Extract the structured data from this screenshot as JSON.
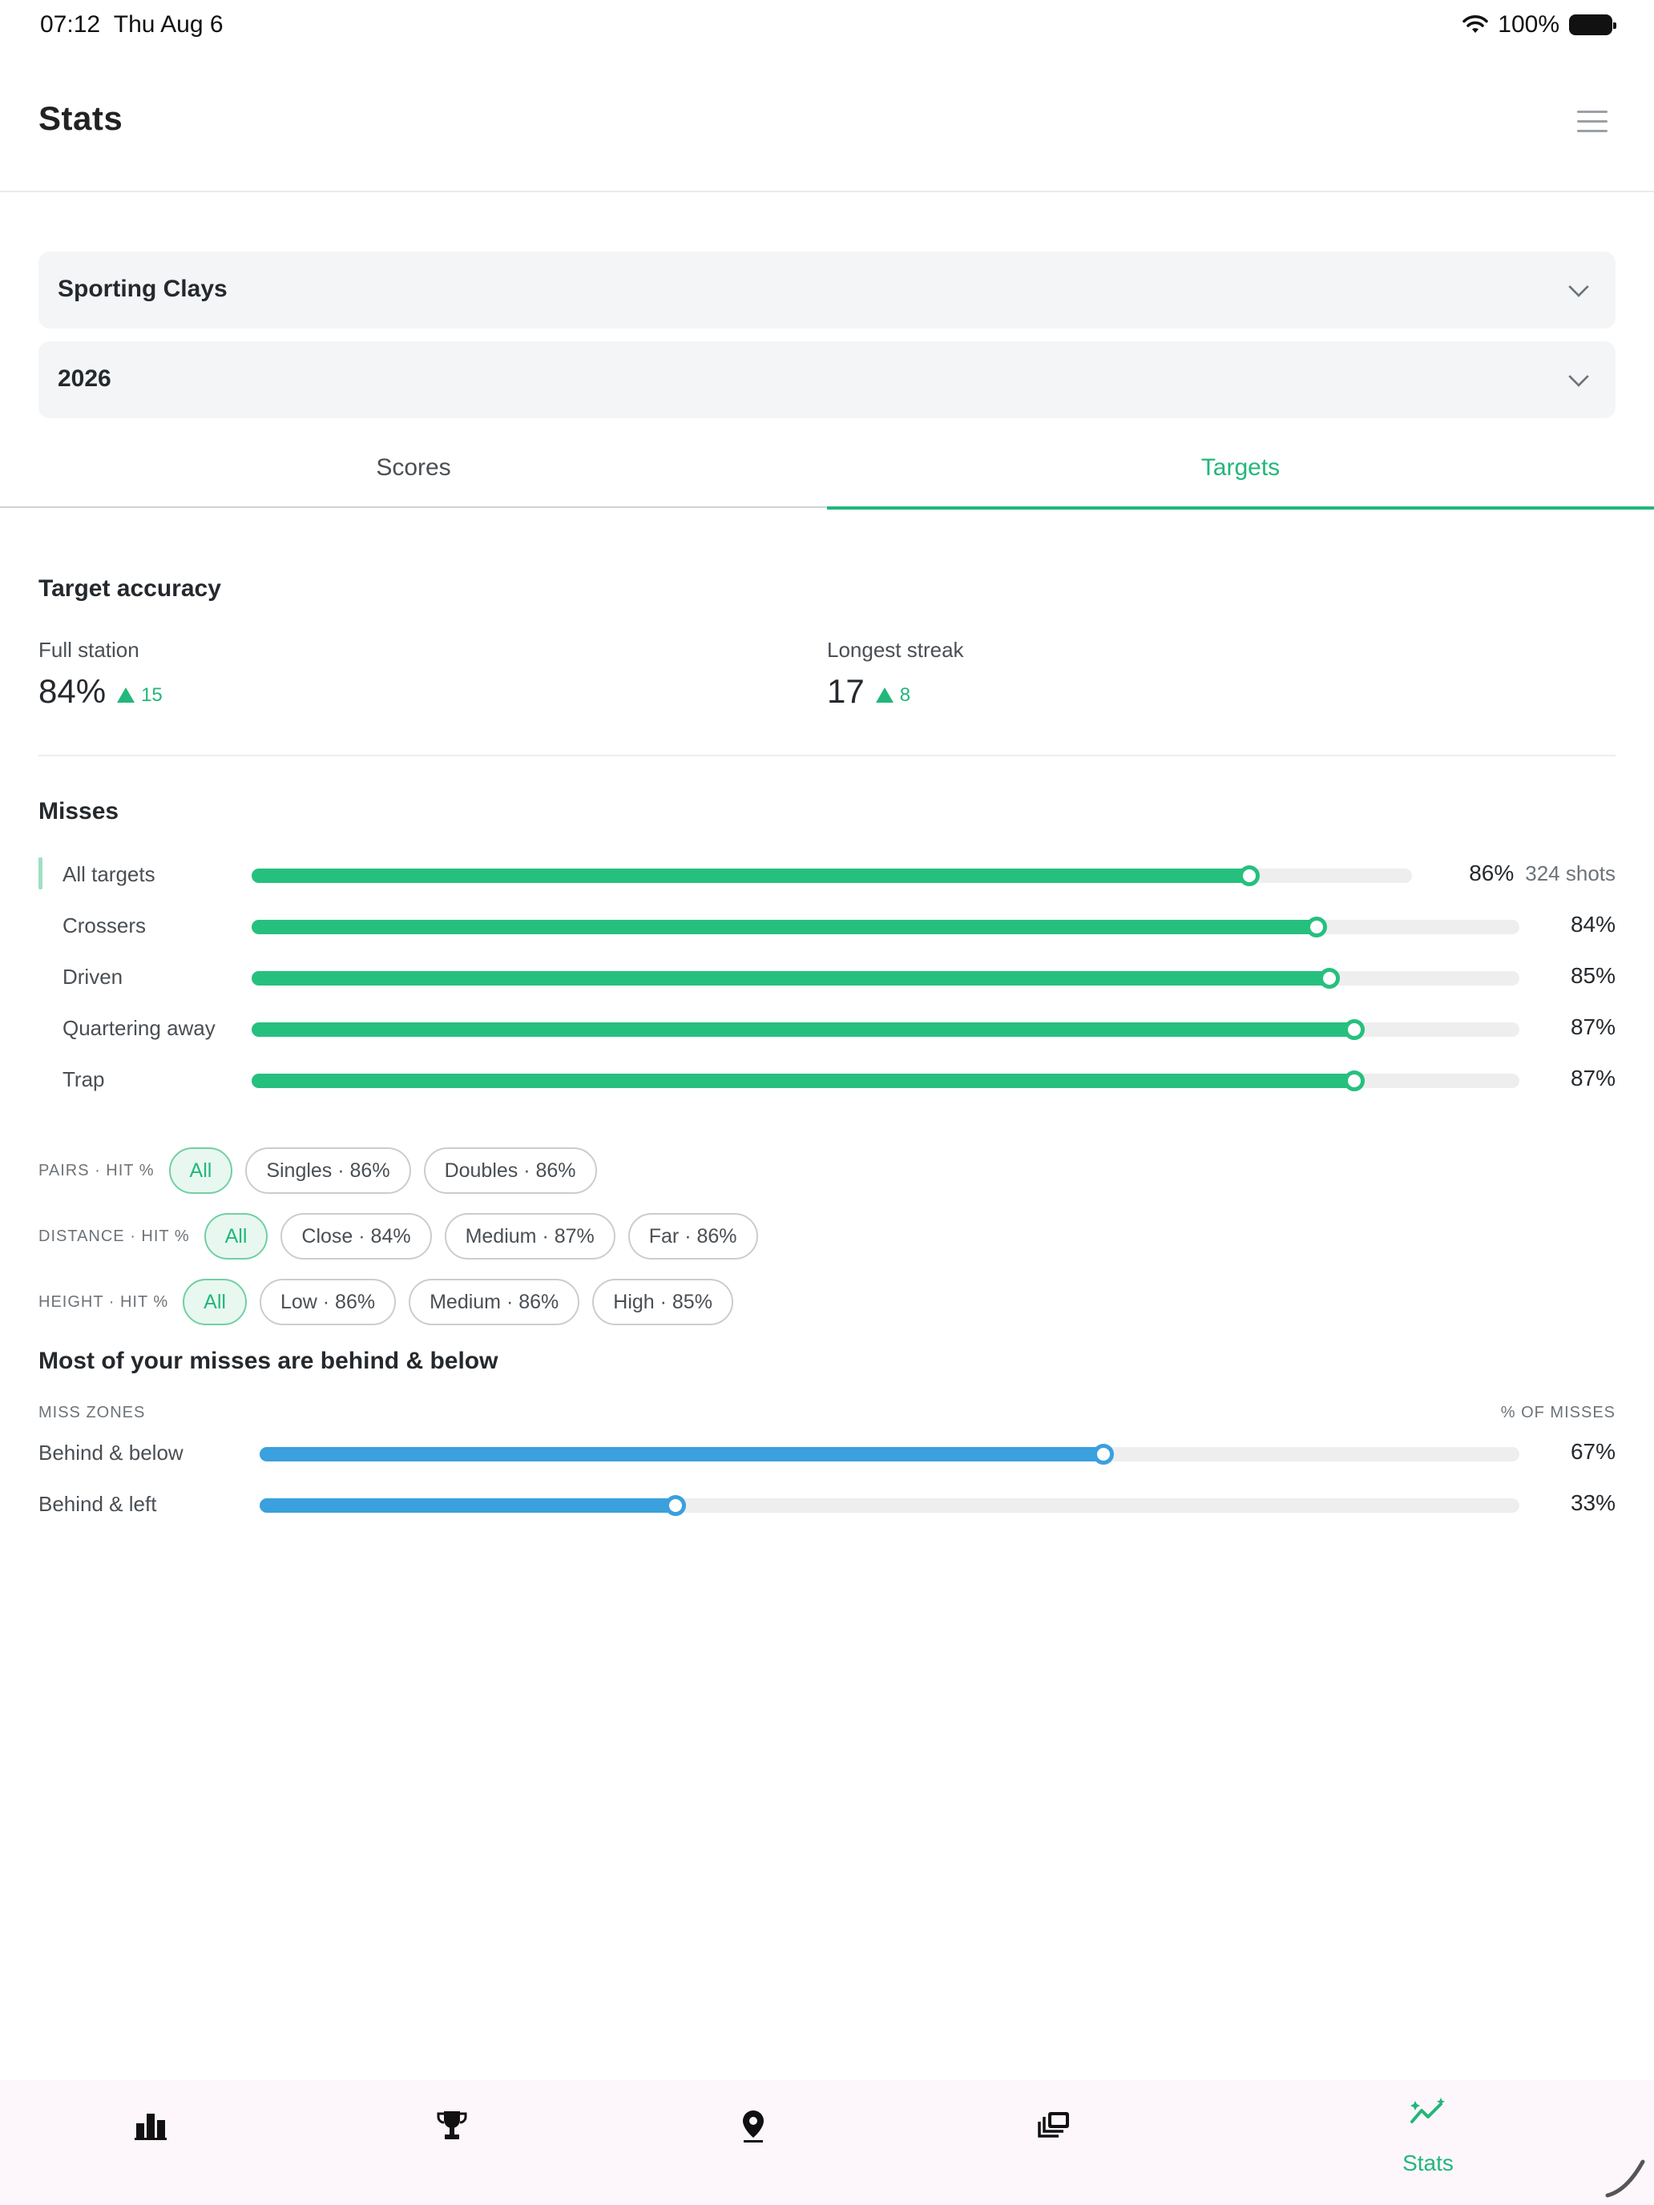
{
  "status_bar": {
    "time": "07:12",
    "date": "Thu Aug 6",
    "battery": "100%"
  },
  "header": {
    "title": "Stats"
  },
  "filters": {
    "discipline": "Sporting Clays",
    "year": "2026"
  },
  "tabs": [
    {
      "label": "Scores",
      "active": false
    },
    {
      "label": "Targets",
      "active": true
    }
  ],
  "accuracy": {
    "title": "Target accuracy",
    "full_station": {
      "label": "Full station",
      "value": "84%",
      "delta": "15"
    },
    "longest_streak": {
      "label": "Longest streak",
      "value": "17",
      "delta": "8"
    }
  },
  "misses": {
    "title": "Misses",
    "rows": [
      {
        "name": "All targets",
        "pct": "86%",
        "value": 86,
        "shots": "324 shots"
      },
      {
        "name": "Crossers",
        "pct": "84%",
        "value": 84
      },
      {
        "name": "Driven",
        "pct": "85%",
        "value": 85
      },
      {
        "name": "Quartering away",
        "pct": "87%",
        "value": 87
      },
      {
        "name": "Trap",
        "pct": "87%",
        "value": 87
      }
    ]
  },
  "chip_filters": {
    "pairs": {
      "label": "PAIRS · HIT %",
      "chips": [
        "All",
        "Singles · 86%",
        "Doubles · 86%"
      ]
    },
    "distance": {
      "label": "DISTANCE · HIT %",
      "chips": [
        "All",
        "Close · 84%",
        "Medium · 87%",
        "Far · 86%"
      ]
    },
    "height": {
      "label": "HEIGHT · HIT %",
      "chips": [
        "All",
        "Low · 86%",
        "Medium · 86%",
        "High · 85%"
      ]
    }
  },
  "miss_zones": {
    "headline": "Most of your misses are behind & below",
    "left_header": "MISS ZONES",
    "right_header": "% OF MISSES",
    "rows": [
      {
        "name": "Behind & below",
        "pct": "67%",
        "value": 67
      },
      {
        "name": "Behind & left",
        "pct": "33%",
        "value": 33
      }
    ]
  },
  "bottom_nav": {
    "items": [
      {
        "icon": "bar-chart-icon",
        "label": ""
      },
      {
        "icon": "trophy-icon",
        "label": ""
      },
      {
        "icon": "location-pin-icon",
        "label": ""
      },
      {
        "icon": "gallery-icon",
        "label": ""
      },
      {
        "icon": "stats-sparkle-icon",
        "label": "Stats"
      }
    ]
  },
  "colors": {
    "accent": "#22b77b",
    "blue": "#3aa0de"
  }
}
